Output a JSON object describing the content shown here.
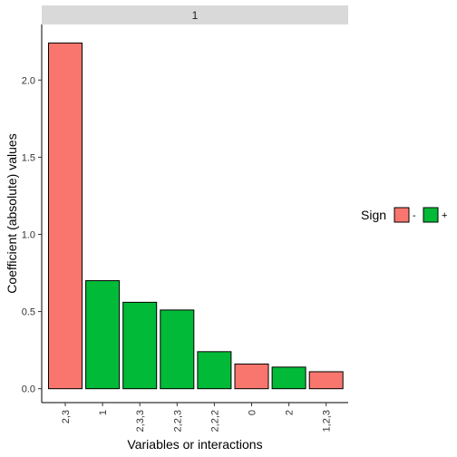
{
  "chart_data": {
    "type": "bar",
    "facet_label": "1",
    "xlabel": "Variables or interactions",
    "ylabel": "Coefficient (absolute) values",
    "categories": [
      "2,3",
      "1",
      "2,3,3",
      "2,2,3",
      "2,2,2",
      "0",
      "2",
      "1,2,3"
    ],
    "values": [
      2.24,
      0.7,
      0.56,
      0.51,
      0.24,
      0.16,
      0.14,
      0.11
    ],
    "signs": [
      "-",
      "+",
      "+",
      "+",
      "+",
      "-",
      "+",
      "-"
    ],
    "ylim": [
      -0.09,
      2.36
    ],
    "yticks": [
      0.0,
      0.5,
      1.0,
      1.5,
      2.0
    ],
    "ytick_labels": [
      "0.0",
      "0.5",
      "1.0",
      "1.5",
      "2.0"
    ],
    "grid": false,
    "legend": {
      "title": "Sign",
      "placement": "right",
      "entries": [
        {
          "label": "-",
          "color": "#F8766D"
        },
        {
          "label": "+",
          "color": "#00BA38"
        }
      ]
    },
    "colors": {
      "-": "#F8766D",
      "+": "#00BA38",
      "strip": "#D9D9D9"
    }
  }
}
